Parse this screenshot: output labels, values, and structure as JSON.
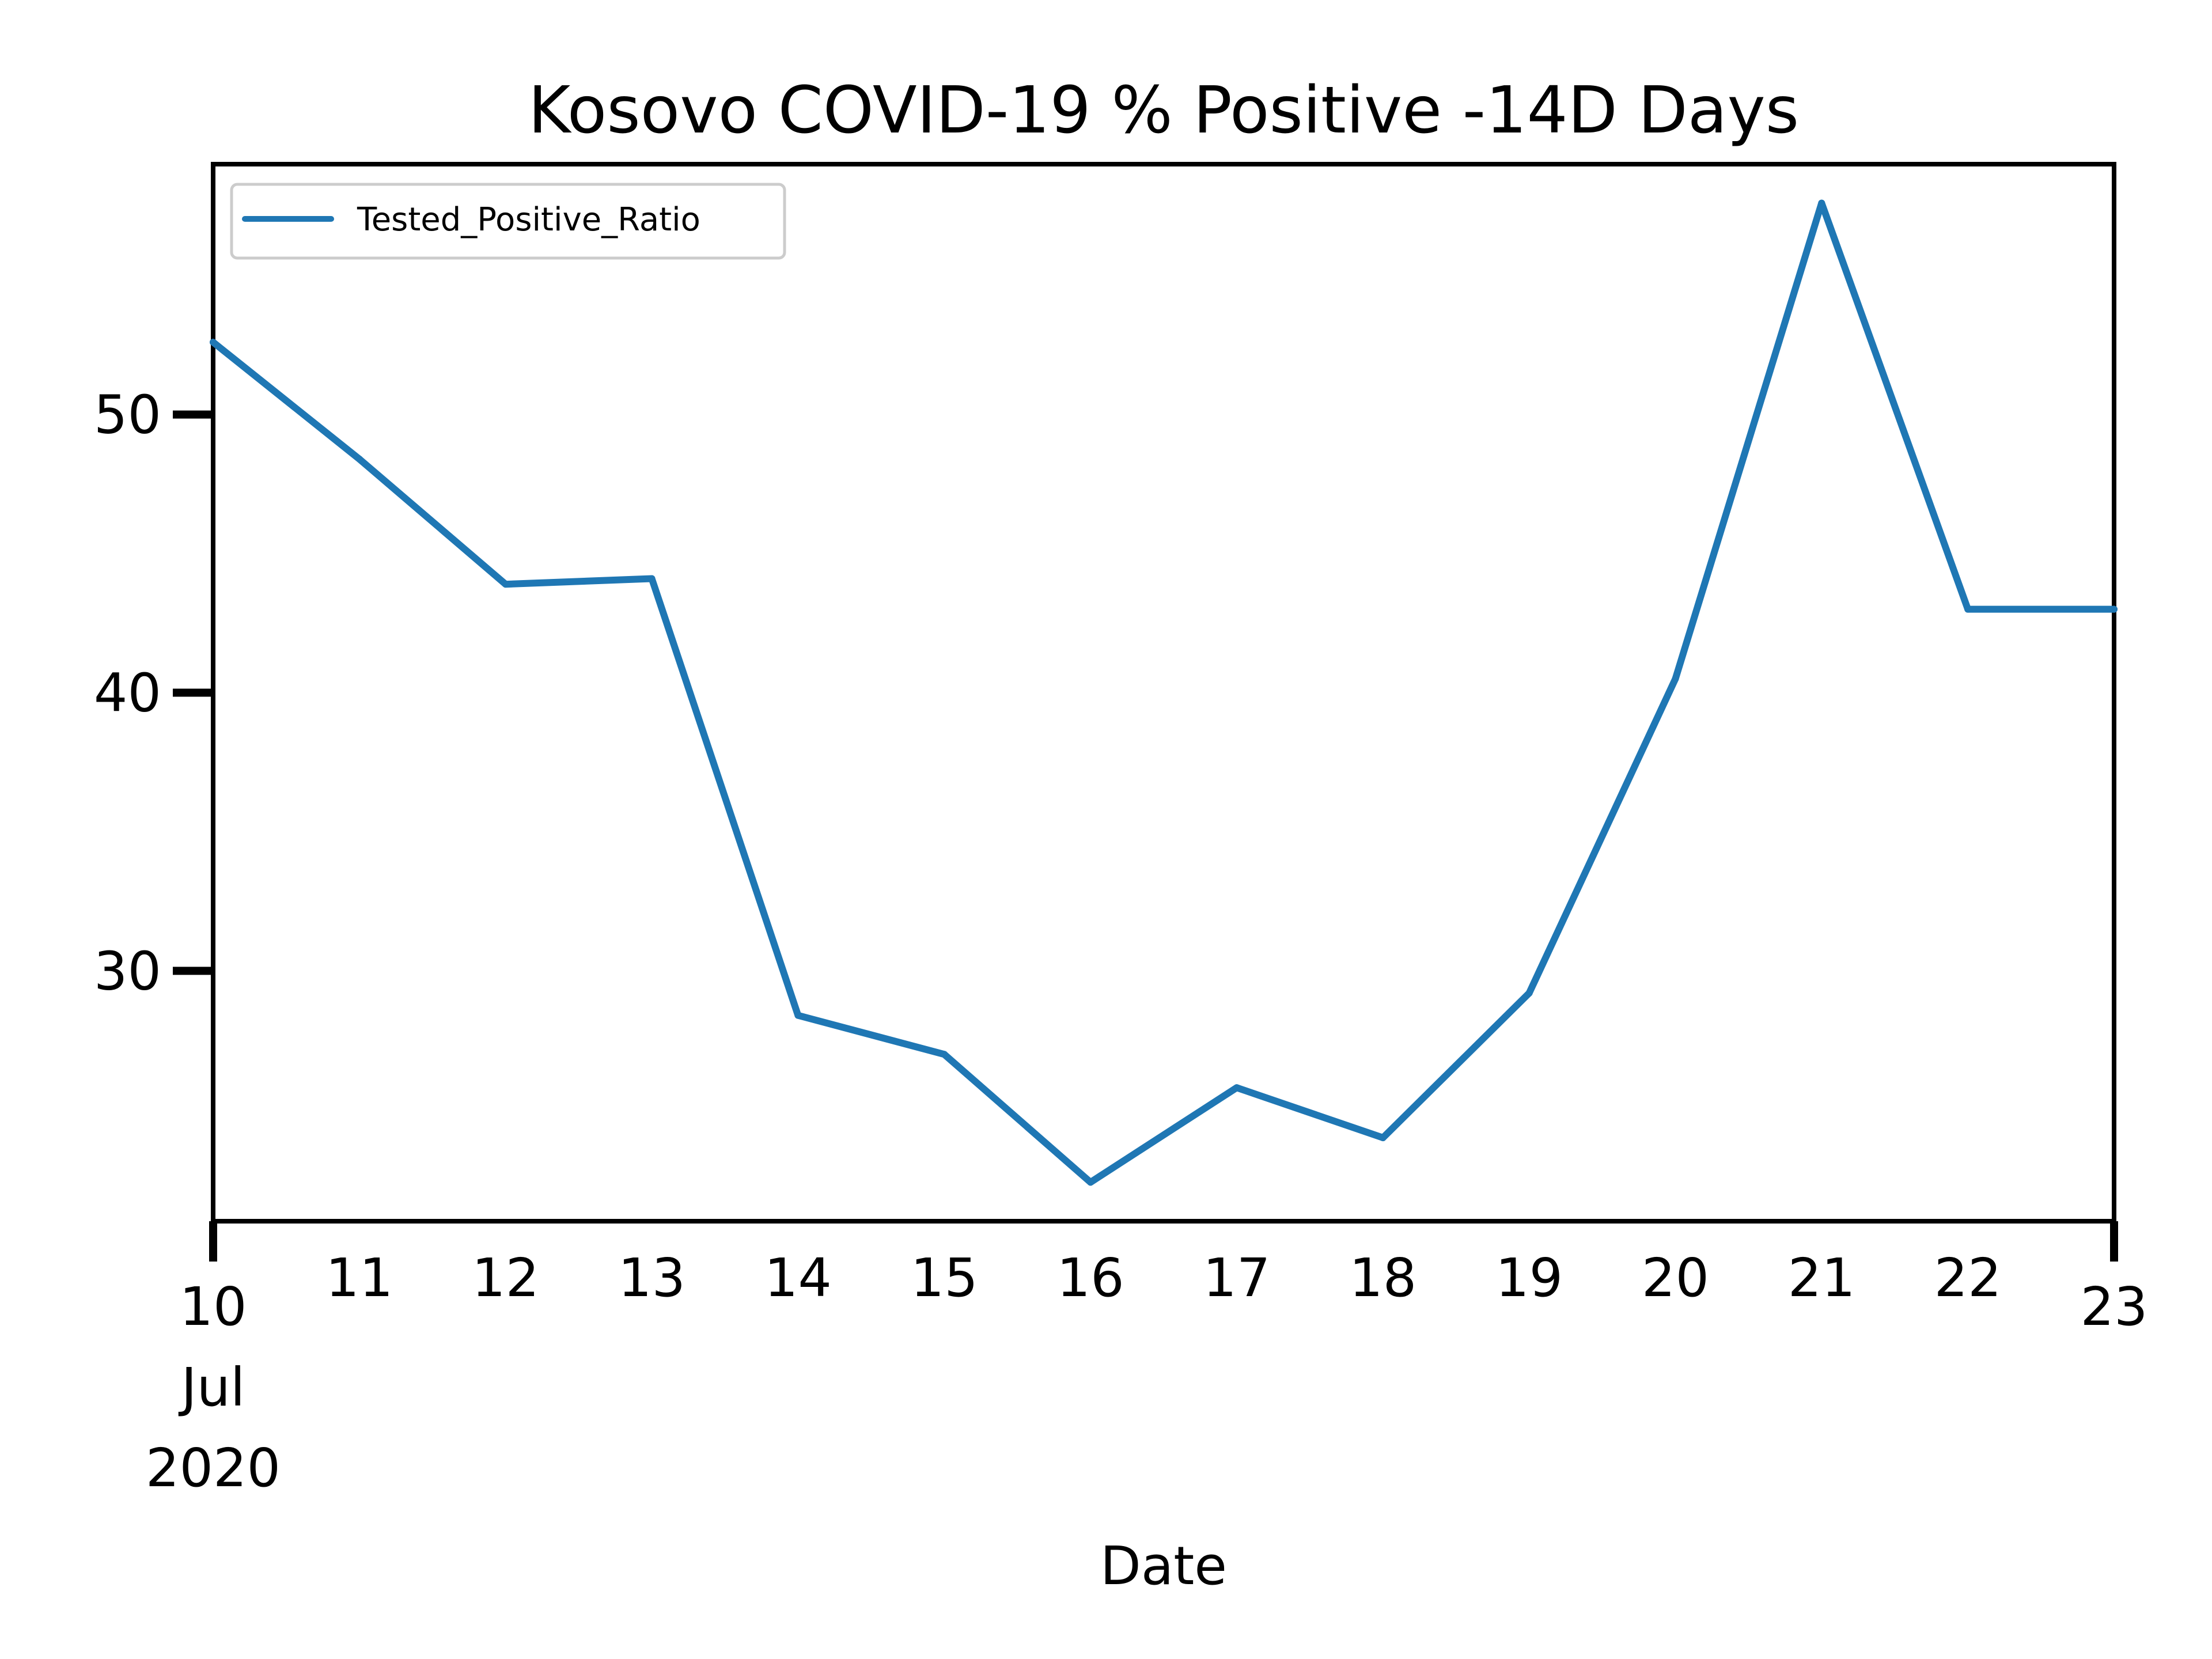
{
  "chart_data": {
    "type": "line",
    "title": "Kosovo COVID-19 % Positive -14D Days",
    "xlabel": "Date",
    "ylabel": "",
    "x_ticks": [
      {
        "day": 10,
        "lines": [
          "10",
          "Jul",
          "2020"
        ]
      },
      {
        "day": 11,
        "lines": [
          "11"
        ]
      },
      {
        "day": 12,
        "lines": [
          "12"
        ]
      },
      {
        "day": 13,
        "lines": [
          "13"
        ]
      },
      {
        "day": 14,
        "lines": [
          "14"
        ]
      },
      {
        "day": 15,
        "lines": [
          "15"
        ]
      },
      {
        "day": 16,
        "lines": [
          "16"
        ]
      },
      {
        "day": 17,
        "lines": [
          "17"
        ]
      },
      {
        "day": 18,
        "lines": [
          "18"
        ]
      },
      {
        "day": 19,
        "lines": [
          "19"
        ]
      },
      {
        "day": 20,
        "lines": [
          "20"
        ]
      },
      {
        "day": 21,
        "lines": [
          "21"
        ]
      },
      {
        "day": 22,
        "lines": [
          "22"
        ]
      },
      {
        "day": 23,
        "lines": [
          "23"
        ]
      }
    ],
    "y_ticks": [
      30,
      40,
      50
    ],
    "xlim": [
      10,
      23
    ],
    "ylim": [
      21,
      59
    ],
    "grid": false,
    "legend": {
      "position": "top-left"
    },
    "series": [
      {
        "name": "Tested_Positive_Ratio",
        "color": "#1f77b4",
        "x": [
          "2020-07-10",
          "2020-07-11",
          "2020-07-12",
          "2020-07-13",
          "2020-07-14",
          "2020-07-15",
          "2020-07-16",
          "2020-07-17",
          "2020-07-18",
          "2020-07-19",
          "2020-07-20",
          "2020-07-21",
          "2020-07-22",
          "2020-07-23"
        ],
        "y": [
          52.6,
          48.4,
          43.9,
          44.1,
          28.4,
          27.0,
          22.4,
          25.8,
          24.0,
          29.2,
          40.5,
          57.6,
          43.0,
          43.0
        ]
      }
    ]
  }
}
